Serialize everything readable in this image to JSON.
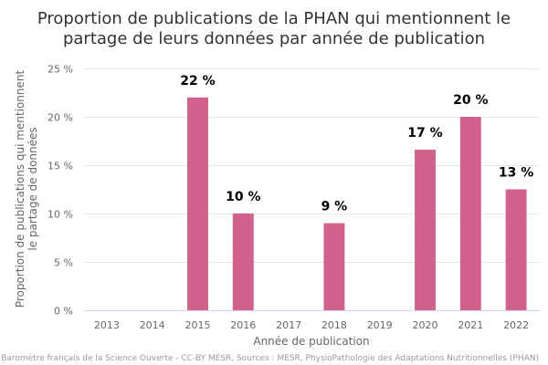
{
  "chart_data": {
    "type": "bar",
    "title": [
      "Proportion de publications de la PHAN qui mentionnent le",
      "partage de leurs données par année de publication"
    ],
    "xlabel": "Année de publication",
    "ylabel": [
      "Proportion de publications qui mentionnent",
      "le partage de données"
    ],
    "categories": [
      "2013",
      "2014",
      "2015",
      "2016",
      "2017",
      "2018",
      "2019",
      "2020",
      "2021",
      "2022"
    ],
    "values": [
      null,
      null,
      22,
      10,
      null,
      9,
      null,
      16.6,
      20,
      12.5
    ],
    "data_labels": [
      "",
      "",
      "22 %",
      "10 %",
      "",
      "9 %",
      "",
      "17 %",
      "20 %",
      "13 %"
    ],
    "yticks": [
      0,
      5,
      10,
      15,
      20,
      25
    ],
    "ytick_labels": [
      "0 %",
      "5 %",
      "10 %",
      "15 %",
      "20 %",
      "25 %"
    ],
    "ylim": [
      0,
      25
    ],
    "bar_color": "#d1628c",
    "grid": true,
    "legend": false
  },
  "credits": "Baromètre français de la Science Ouverte - CC-BY MESR, Sources : MESR, PhysioPathologie des Adaptations Nutritionnelles (PHAN)"
}
